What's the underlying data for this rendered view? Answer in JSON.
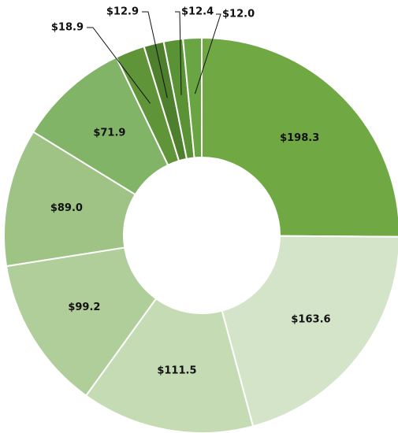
{
  "chart_data": {
    "type": "donut",
    "values": [
      198.3,
      163.6,
      111.5,
      99.2,
      89.0,
      71.9,
      18.9,
      12.9,
      12.4,
      12.0
    ],
    "value_labels": [
      "$198.3",
      "$163.6",
      "$111.5",
      "$99.2",
      "$89.0",
      "$71.9",
      "$18.9",
      "$12.9",
      "$12.4",
      "$12.0"
    ],
    "colors": [
      "#70a844",
      "#d4e4c8",
      "#c5dbb4",
      "#b0ce9a",
      "#9fc385",
      "#82b468",
      "#5f9438",
      "#4e7f2c",
      "#5a9336",
      "#6aa544"
    ]
  }
}
